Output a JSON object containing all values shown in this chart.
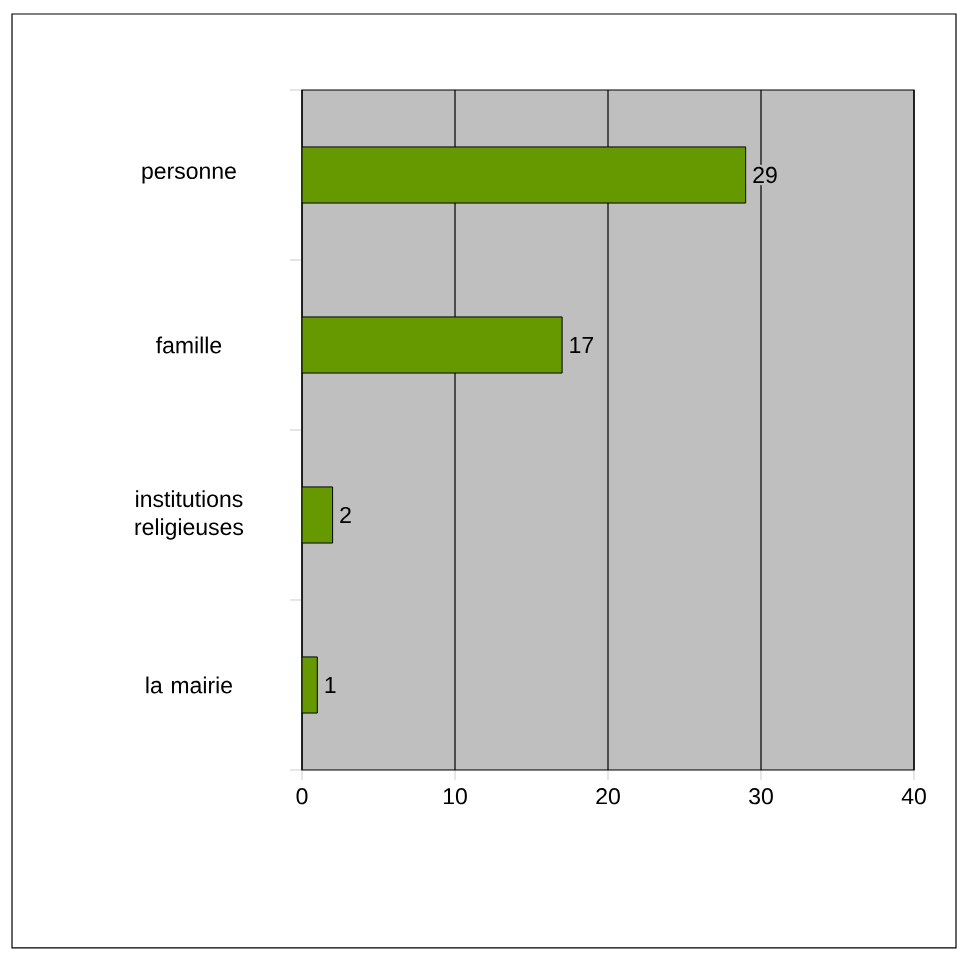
{
  "chart_data": {
    "type": "bar",
    "orientation": "horizontal",
    "categories": [
      "personne",
      "famille",
      "institutions religieuses",
      "la mairie"
    ],
    "values": [
      29,
      17,
      2,
      1
    ],
    "color": "#669900",
    "xlim": [
      0,
      40
    ],
    "xticks": [
      0,
      10,
      20,
      30,
      40
    ],
    "grid": "x",
    "data_labels": true
  }
}
